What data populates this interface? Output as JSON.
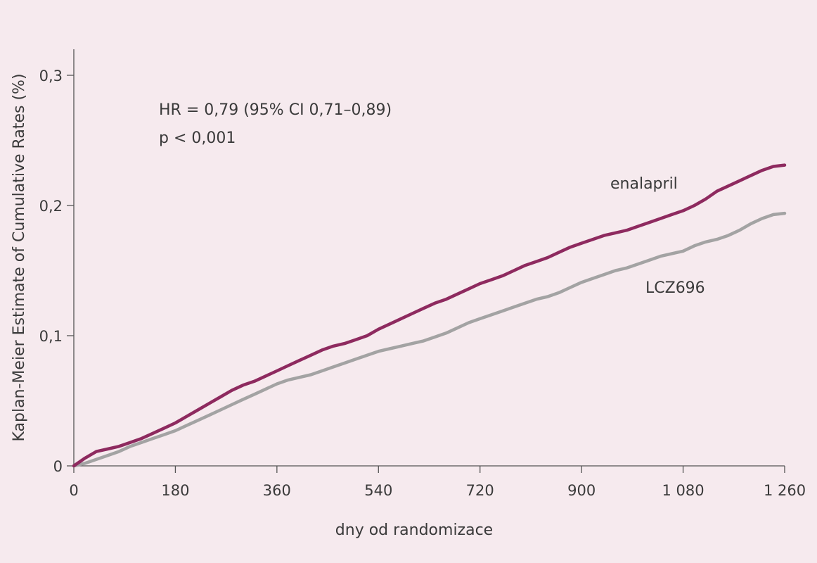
{
  "chart_data": {
    "type": "line",
    "title": "",
    "xlabel": "dny od randomizace",
    "ylabel": "Kaplan-Meier Estimate of Cumulative Rates (%)",
    "xlim": [
      0,
      1260
    ],
    "ylim": [
      0,
      0.32
    ],
    "x_ticks": [
      0,
      180,
      360,
      540,
      720,
      900,
      1080,
      1260
    ],
    "x_tick_labels": [
      "0",
      "180",
      "360",
      "540",
      "720",
      "900",
      "1 080",
      "1 260"
    ],
    "y_ticks": [
      0,
      0.1,
      0.2,
      0.3
    ],
    "y_tick_labels": [
      "0",
      "0,1",
      "0,2",
      "0,3"
    ],
    "grid": false,
    "annotations": [
      "HR = 0,79 (95% CI 0,71–0,89)",
      "p < 0,001"
    ],
    "colors": {
      "enalapril": "#8e2a5f",
      "LCZ696": "#a3a3a3",
      "axis": "#555555",
      "background": "#f6eaee"
    },
    "series": [
      {
        "name": "enalapril",
        "x": [
          0,
          20,
          40,
          60,
          80,
          100,
          120,
          140,
          160,
          180,
          200,
          220,
          240,
          260,
          280,
          300,
          320,
          340,
          360,
          380,
          400,
          420,
          440,
          460,
          480,
          500,
          520,
          540,
          560,
          580,
          600,
          620,
          640,
          660,
          680,
          700,
          720,
          740,
          760,
          780,
          800,
          820,
          840,
          860,
          880,
          900,
          920,
          940,
          960,
          980,
          1000,
          1020,
          1040,
          1060,
          1080,
          1100,
          1120,
          1140,
          1160,
          1180,
          1200,
          1220,
          1240,
          1260
        ],
        "y": [
          0,
          0.006,
          0.011,
          0.013,
          0.015,
          0.018,
          0.021,
          0.025,
          0.029,
          0.033,
          0.038,
          0.043,
          0.048,
          0.053,
          0.058,
          0.062,
          0.065,
          0.069,
          0.073,
          0.077,
          0.081,
          0.085,
          0.089,
          0.092,
          0.094,
          0.097,
          0.1,
          0.105,
          0.109,
          0.113,
          0.117,
          0.121,
          0.125,
          0.128,
          0.132,
          0.136,
          0.14,
          0.143,
          0.146,
          0.15,
          0.154,
          0.157,
          0.16,
          0.164,
          0.168,
          0.171,
          0.174,
          0.177,
          0.179,
          0.181,
          0.184,
          0.187,
          0.19,
          0.193,
          0.196,
          0.2,
          0.205,
          0.211,
          0.215,
          0.219,
          0.223,
          0.227,
          0.23,
          0.231
        ]
      },
      {
        "name": "LCZ696",
        "x": [
          0,
          20,
          40,
          60,
          80,
          100,
          120,
          140,
          160,
          180,
          200,
          220,
          240,
          260,
          280,
          300,
          320,
          340,
          360,
          380,
          400,
          420,
          440,
          460,
          480,
          500,
          520,
          540,
          560,
          580,
          600,
          620,
          640,
          660,
          680,
          700,
          720,
          740,
          760,
          780,
          800,
          820,
          840,
          860,
          880,
          900,
          920,
          940,
          960,
          980,
          1000,
          1020,
          1040,
          1060,
          1080,
          1100,
          1120,
          1140,
          1160,
          1180,
          1200,
          1220,
          1240,
          1260
        ],
        "y": [
          0,
          0.002,
          0.005,
          0.008,
          0.011,
          0.015,
          0.018,
          0.021,
          0.024,
          0.027,
          0.031,
          0.035,
          0.039,
          0.043,
          0.047,
          0.051,
          0.055,
          0.059,
          0.063,
          0.066,
          0.068,
          0.07,
          0.073,
          0.076,
          0.079,
          0.082,
          0.085,
          0.088,
          0.09,
          0.092,
          0.094,
          0.096,
          0.099,
          0.102,
          0.106,
          0.11,
          0.113,
          0.116,
          0.119,
          0.122,
          0.125,
          0.128,
          0.13,
          0.133,
          0.137,
          0.141,
          0.144,
          0.147,
          0.15,
          0.152,
          0.155,
          0.158,
          0.161,
          0.163,
          0.165,
          0.169,
          0.172,
          0.174,
          0.177,
          0.181,
          0.186,
          0.19,
          0.193,
          0.194
        ]
      }
    ]
  }
}
